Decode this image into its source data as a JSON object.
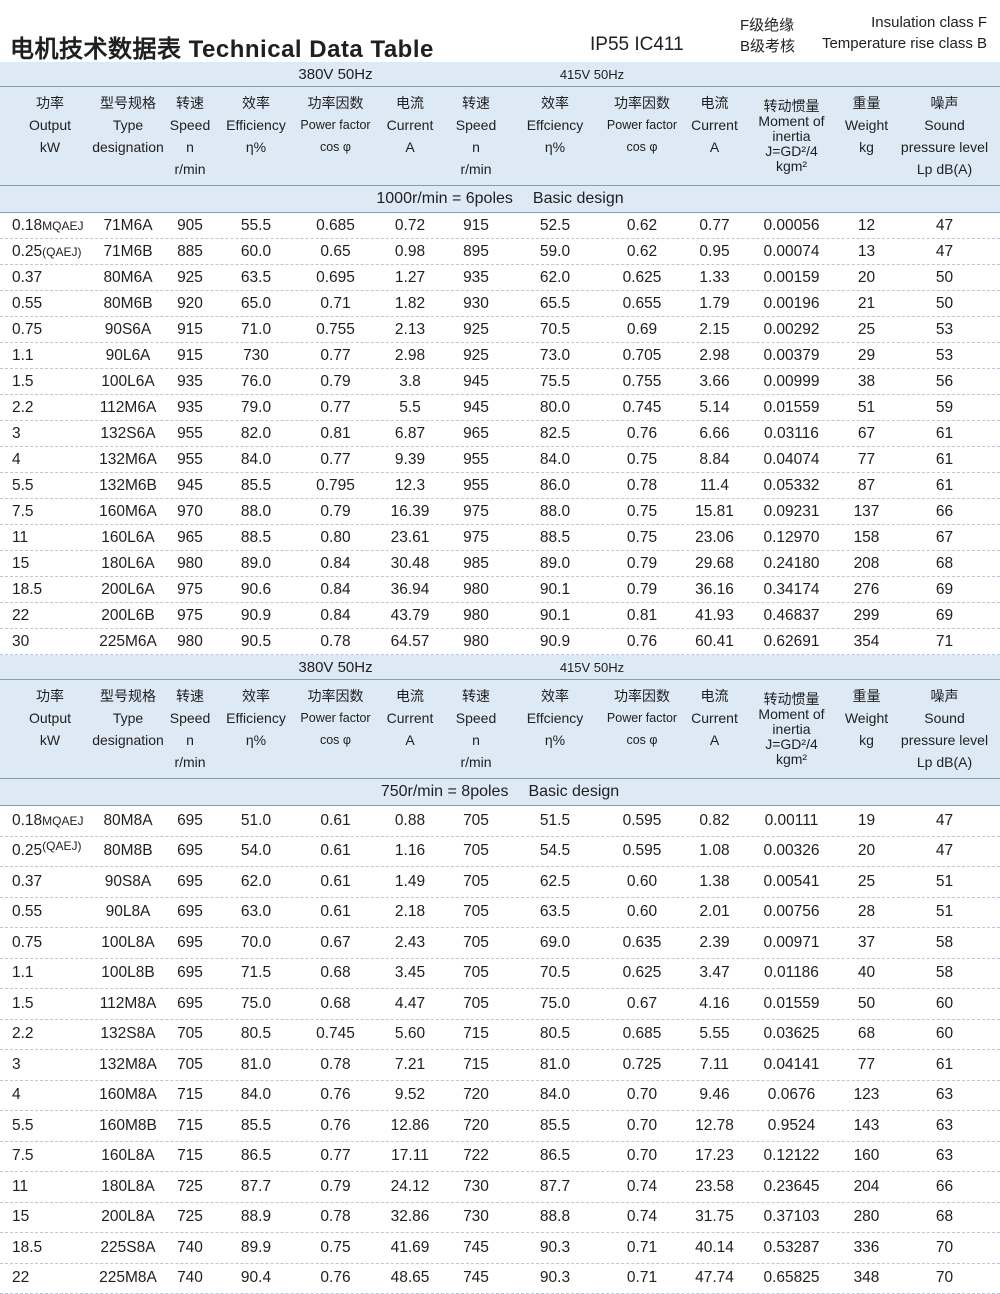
{
  "header": {
    "title": "电机技术数据表 Technical Data Table",
    "protection": "IP55  IC411",
    "insulation_cn": "F级绝缘",
    "insulation_en": "Insulation class F",
    "temp_cn": "B级考核",
    "temp_en": "Temperature rise class B"
  },
  "voltage": {
    "v380": "380V 50Hz",
    "v415": "415V 50Hz"
  },
  "columns": {
    "output": [
      "功率",
      "Output",
      "kW"
    ],
    "type": [
      "型号规格",
      "Type",
      "designation"
    ],
    "speed": [
      "转速",
      "Speed",
      "n",
      "r/min"
    ],
    "efficiency": [
      "效率",
      "Efficiency",
      "η%"
    ],
    "efficiency_415": [
      "效率",
      "Effciency",
      "η%"
    ],
    "pf": [
      "功率因数",
      "Power factor",
      "cos φ"
    ],
    "current": [
      "电流",
      "Current",
      "A"
    ],
    "inertia": [
      "转动惯量",
      "Moment of",
      "inertia",
      "J=GD²/4",
      "kgm²"
    ],
    "weight": [
      "重量",
      "Weight",
      "kg"
    ],
    "sound": [
      "噪声",
      "Sound",
      "pressure level",
      "Lp dB(A)"
    ]
  },
  "tables": [
    {
      "subtitle_left": "1000r/min = 6poles",
      "subtitle_right": "Basic design",
      "rows": [
        [
          "0.18",
          "MQAEJ",
          "71M6A",
          "905",
          "55.5",
          "0.685",
          "0.72",
          "915",
          "52.5",
          "0.62",
          "0.77",
          "0.00056",
          "12",
          "47"
        ],
        [
          "0.25",
          "(QAEJ)",
          "71M6B",
          "885",
          "60.0",
          "0.65",
          "0.98",
          "895",
          "59.0",
          "0.62",
          "0.95",
          "0.00074",
          "13",
          "47"
        ],
        [
          "0.37",
          "",
          "80M6A",
          "925",
          "63.5",
          "0.695",
          "1.27",
          "935",
          "62.0",
          "0.625",
          "1.33",
          "0.00159",
          "20",
          "50"
        ],
        [
          "0.55",
          "",
          "80M6B",
          "920",
          "65.0",
          "0.71",
          "1.82",
          "930",
          "65.5",
          "0.655",
          "1.79",
          "0.00196",
          "21",
          "50"
        ],
        [
          "0.75",
          "",
          "90S6A",
          "915",
          "71.0",
          "0.755",
          "2.13",
          "925",
          "70.5",
          "0.69",
          "2.15",
          "0.00292",
          "25",
          "53"
        ],
        [
          "1.1",
          "",
          "90L6A",
          "915",
          "730",
          "0.77",
          "2.98",
          "925",
          "73.0",
          "0.705",
          "2.98",
          "0.00379",
          "29",
          "53"
        ],
        [
          "1.5",
          "",
          "100L6A",
          "935",
          "76.0",
          "0.79",
          "3.8",
          "945",
          "75.5",
          "0.755",
          "3.66",
          "0.00999",
          "38",
          "56"
        ],
        [
          "2.2",
          "",
          "112M6A",
          "935",
          "79.0",
          "0.77",
          "5.5",
          "945",
          "80.0",
          "0.745",
          "5.14",
          "0.01559",
          "51",
          "59"
        ],
        [
          "3",
          "",
          "132S6A",
          "955",
          "82.0",
          "0.81",
          "6.87",
          "965",
          "82.5",
          "0.76",
          "6.66",
          "0.03116",
          "67",
          "61"
        ],
        [
          "4",
          "",
          "132M6A",
          "955",
          "84.0",
          "0.77",
          "9.39",
          "955",
          "84.0",
          "0.75",
          "8.84",
          "0.04074",
          "77",
          "61"
        ],
        [
          "5.5",
          "",
          "132M6B",
          "945",
          "85.5",
          "0.795",
          "12.3",
          "955",
          "86.0",
          "0.78",
          "11.4",
          "0.05332",
          "87",
          "61"
        ],
        [
          "7.5",
          "",
          "160M6A",
          "970",
          "88.0",
          "0.79",
          "16.39",
          "975",
          "88.0",
          "0.75",
          "15.81",
          "0.09231",
          "137",
          "66"
        ],
        [
          "11",
          "",
          "160L6A",
          "965",
          "88.5",
          "0.80",
          "23.61",
          "975",
          "88.5",
          "0.75",
          "23.06",
          "0.12970",
          "158",
          "67"
        ],
        [
          "15",
          "",
          "180L6A",
          "980",
          "89.0",
          "0.84",
          "30.48",
          "985",
          "89.0",
          "0.79",
          "29.68",
          "0.24180",
          "208",
          "68"
        ],
        [
          "18.5",
          "",
          "200L6A",
          "975",
          "90.6",
          "0.84",
          "36.94",
          "980",
          "90.1",
          "0.79",
          "36.16",
          "0.34174",
          "276",
          "69"
        ],
        [
          "22",
          "",
          "200L6B",
          "975",
          "90.9",
          "0.84",
          "43.79",
          "980",
          "90.1",
          "0.81",
          "41.93",
          "0.46837",
          "299",
          "69"
        ],
        [
          "30",
          "",
          "225M6A",
          "980",
          "90.5",
          "0.78",
          "64.57",
          "980",
          "90.9",
          "0.76",
          "60.41",
          "0.62691",
          "354",
          "71"
        ]
      ]
    },
    {
      "subtitle_left": "750r/min = 8poles",
      "subtitle_right": "Basic design",
      "rows": [
        [
          "0.18",
          "MQAEJ",
          "80M8A",
          "695",
          "51.0",
          "0.61",
          "0.88",
          "705",
          "51.5",
          "0.595",
          "0.82",
          "0.00111",
          "19",
          "47"
        ],
        [
          "0.25",
          "(QAEJ)",
          "80M8B",
          "695",
          "54.0",
          "0.61",
          "1.16",
          "705",
          "54.5",
          "0.595",
          "1.08",
          "0.00326",
          "20",
          "47"
        ],
        [
          "0.37",
          "",
          "90S8A",
          "695",
          "62.0",
          "0.61",
          "1.49",
          "705",
          "62.5",
          "0.60",
          "1.38",
          "0.00541",
          "25",
          "51"
        ],
        [
          "0.55",
          "",
          "90L8A",
          "695",
          "63.0",
          "0.61",
          "2.18",
          "705",
          "63.5",
          "0.60",
          "2.01",
          "0.00756",
          "28",
          "51"
        ],
        [
          "0.75",
          "",
          "100L8A",
          "695",
          "70.0",
          "0.67",
          "2.43",
          "705",
          "69.0",
          "0.635",
          "2.39",
          "0.00971",
          "37",
          "58"
        ],
        [
          "1.1",
          "",
          "100L8B",
          "695",
          "71.5",
          "0.68",
          "3.45",
          "705",
          "70.5",
          "0.625",
          "3.47",
          "0.01186",
          "40",
          "58"
        ],
        [
          "1.5",
          "",
          "112M8A",
          "695",
          "75.0",
          "0.68",
          "4.47",
          "705",
          "75.0",
          "0.67",
          "4.16",
          "0.01559",
          "50",
          "60"
        ],
        [
          "2.2",
          "",
          "132S8A",
          "705",
          "80.5",
          "0.745",
          "5.60",
          "715",
          "80.5",
          "0.685",
          "5.55",
          "0.03625",
          "68",
          "60"
        ],
        [
          "3",
          "",
          "132M8A",
          "705",
          "81.0",
          "0.78",
          "7.21",
          "715",
          "81.0",
          "0.725",
          "7.11",
          "0.04141",
          "77",
          "61"
        ],
        [
          "4",
          "",
          "160M8A",
          "715",
          "84.0",
          "0.76",
          "9.52",
          "720",
          "84.0",
          "0.70",
          "9.46",
          "0.0676",
          "123",
          "63"
        ],
        [
          "5.5",
          "",
          "160M8B",
          "715",
          "85.5",
          "0.76",
          "12.86",
          "720",
          "85.5",
          "0.70",
          "12.78",
          "0.9524",
          "143",
          "63"
        ],
        [
          "7.5",
          "",
          "160L8A",
          "715",
          "86.5",
          "0.77",
          "17.11",
          "722",
          "86.5",
          "0.70",
          "17.23",
          "0.12122",
          "160",
          "63"
        ],
        [
          "11",
          "",
          "180L8A",
          "725",
          "87.7",
          "0.79",
          "24.12",
          "730",
          "87.7",
          "0.74",
          "23.58",
          "0.23645",
          "204",
          "66"
        ],
        [
          "15",
          "",
          "200L8A",
          "725",
          "88.9",
          "0.78",
          "32.86",
          "730",
          "88.8",
          "0.74",
          "31.75",
          "0.37103",
          "280",
          "68"
        ],
        [
          "18.5",
          "",
          "225S8A",
          "740",
          "89.9",
          "0.75",
          "41.69",
          "745",
          "90.3",
          "0.71",
          "40.14",
          "0.53287",
          "336",
          "70"
        ],
        [
          "22",
          "",
          "225M8A",
          "740",
          "90.4",
          "0.76",
          "48.65",
          "745",
          "90.3",
          "0.71",
          "47.74",
          "0.65825",
          "348",
          "70"
        ]
      ]
    }
  ]
}
